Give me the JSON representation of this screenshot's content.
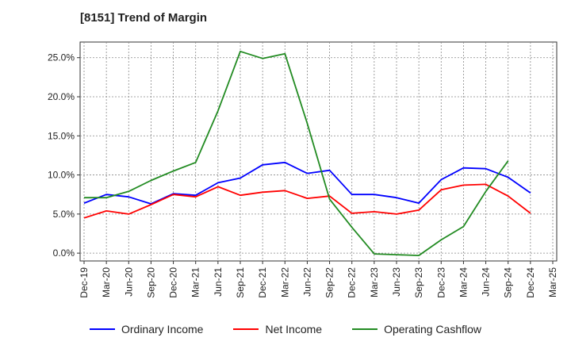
{
  "header": {
    "title": "[8151]  Trend of Margin"
  },
  "chart_data": {
    "type": "line",
    "title": "[8151]  Trend of Margin",
    "xlabel": "",
    "ylabel": "",
    "x": [
      "Dec-19",
      "Mar-20",
      "Jun-20",
      "Sep-20",
      "Dec-20",
      "Mar-21",
      "Jun-21",
      "Sep-21",
      "Dec-21",
      "Mar-22",
      "Jun-22",
      "Sep-22",
      "Dec-22",
      "Mar-23",
      "Jun-23",
      "Sep-23",
      "Dec-23",
      "Mar-24",
      "Jun-24",
      "Sep-24",
      "Dec-24",
      "Mar-25"
    ],
    "y_ticks": [
      "0.0%",
      "5.0%",
      "10.0%",
      "15.0%",
      "20.0%",
      "25.0%"
    ],
    "ylim": [
      -1.0,
      27.0
    ],
    "grid": true,
    "legend_position": "bottom",
    "series": [
      {
        "name": "Ordinary Income",
        "color": "#0000ff",
        "values": [
          6.4,
          7.5,
          7.2,
          6.3,
          7.6,
          7.4,
          9.0,
          9.6,
          11.3,
          11.6,
          10.2,
          10.6,
          7.5,
          7.5,
          7.1,
          6.4,
          9.4,
          10.9,
          10.8,
          9.7,
          7.7,
          null
        ]
      },
      {
        "name": "Net Income",
        "color": "#ff0000",
        "values": [
          4.5,
          5.4,
          5.0,
          6.2,
          7.5,
          7.2,
          8.5,
          7.4,
          7.8,
          8.0,
          7.0,
          7.3,
          5.1,
          5.3,
          5.0,
          5.5,
          8.1,
          8.7,
          8.8,
          7.3,
          5.1,
          null
        ]
      },
      {
        "name": "Operating Cashflow",
        "color": "#228B22",
        "values": [
          7.1,
          7.1,
          7.9,
          9.3,
          10.5,
          11.6,
          18.2,
          25.8,
          24.9,
          25.5,
          16.6,
          6.9,
          3.3,
          -0.1,
          -0.2,
          -0.3,
          1.7,
          3.4,
          7.9,
          11.8,
          null,
          null
        ]
      }
    ]
  }
}
